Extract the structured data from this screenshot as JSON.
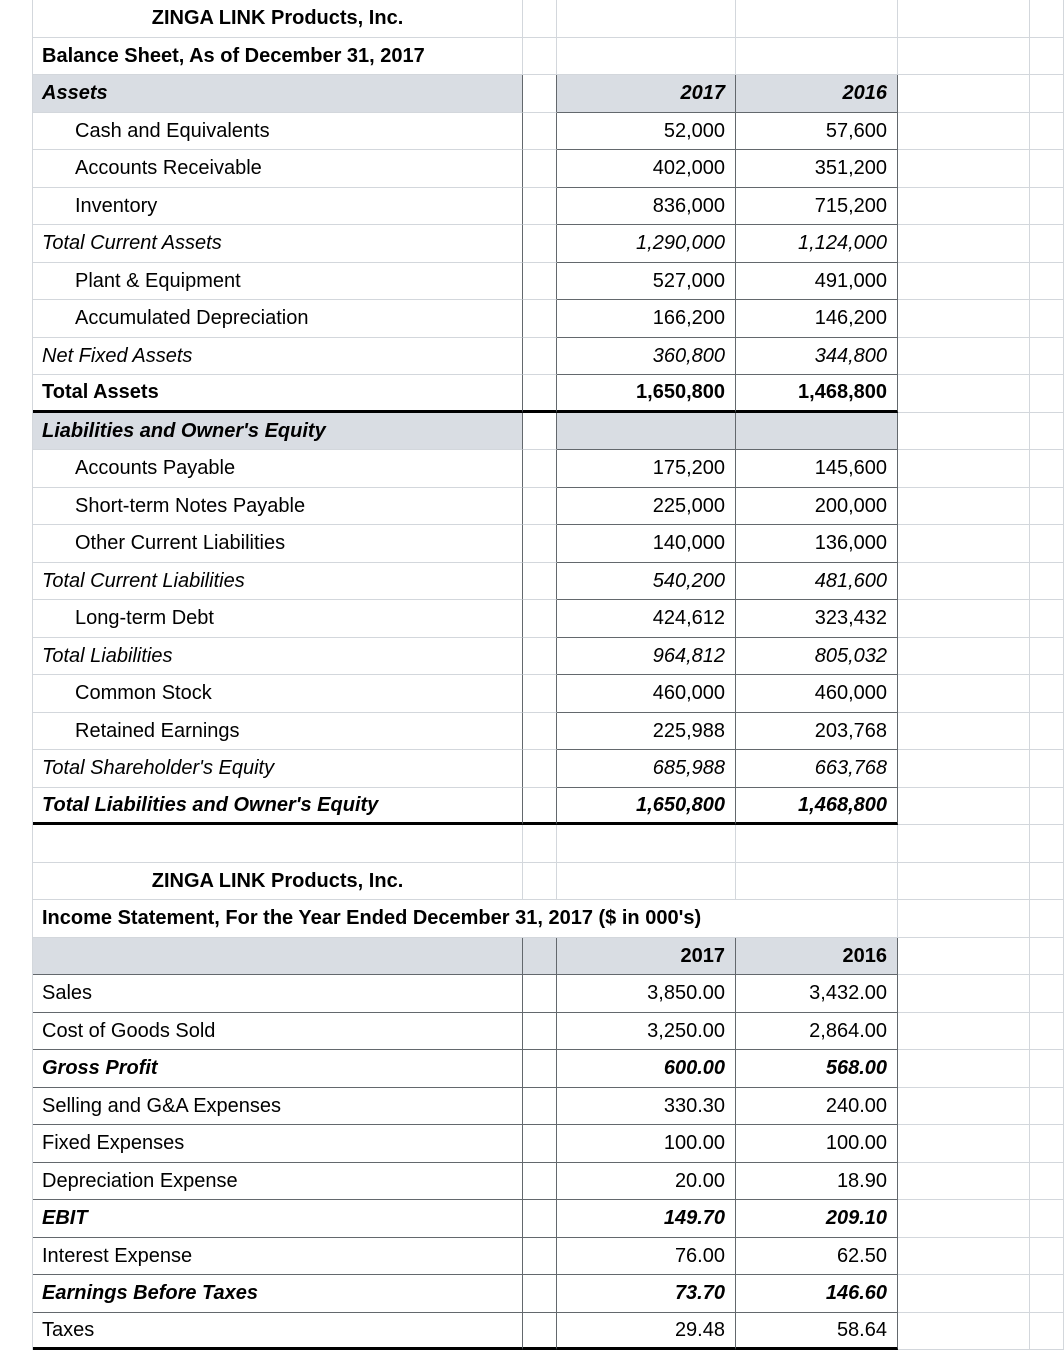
{
  "colors": {
    "header_bg": "#d9dde3",
    "gridline": "#d3d7dc",
    "table_border": "#63686d",
    "heavy_border": "#000000",
    "text": "#000000"
  },
  "balance_sheet_title": "ZINGA LINK Products, Inc.",
  "balance_sheet_subtitle": "Balance Sheet, As of December 31, 2017",
  "income_statement_title": "ZINGA LINK Products, Inc.",
  "income_statement_subtitle": "Income Statement, For the Year Ended December 31, 2017 ($ in 000's)",
  "rows": [
    {
      "type": "title",
      "label": "ZINGA LINK Products, Inc."
    },
    {
      "type": "subtitle",
      "label": "Balance Sheet, As of December 31, 2017"
    },
    {
      "type": "bs-header",
      "label": "Assets",
      "v2017": "2017",
      "v2016": "2016"
    },
    {
      "type": "detail",
      "label": "Cash and Equivalents",
      "v2017": "52,000",
      "v2016": "57,600"
    },
    {
      "type": "detail",
      "label": "Accounts Receivable",
      "v2017": "402,000",
      "v2016": "351,200"
    },
    {
      "type": "detail",
      "label": "Inventory",
      "v2017": "836,000",
      "v2016": "715,200"
    },
    {
      "type": "subtotal",
      "label": "Total Current Assets",
      "v2017": "1,290,000",
      "v2016": "1,124,000"
    },
    {
      "type": "detail",
      "label": "Plant & Equipment",
      "v2017": "527,000",
      "v2016": "491,000"
    },
    {
      "type": "detail",
      "label": "Accumulated Depreciation",
      "v2017": "166,200",
      "v2016": "146,200"
    },
    {
      "type": "subtotal",
      "label": "Net Fixed Assets",
      "v2017": "360,800",
      "v2016": "344,800"
    },
    {
      "type": "total",
      "label": "Total Assets",
      "v2017": "1,650,800",
      "v2016": "1,468,800"
    },
    {
      "type": "section",
      "label": "Liabilities and Owner's Equity"
    },
    {
      "type": "detail",
      "label": "Accounts Payable",
      "v2017": "175,200",
      "v2016": "145,600"
    },
    {
      "type": "detail",
      "label": "Short-term Notes Payable",
      "v2017": "225,000",
      "v2016": "200,000"
    },
    {
      "type": "detail",
      "label": "Other Current Liabilities",
      "v2017": "140,000",
      "v2016": "136,000"
    },
    {
      "type": "subtotal",
      "label": "Total Current Liabilities",
      "v2017": "540,200",
      "v2016": "481,600"
    },
    {
      "type": "detail",
      "label": "Long-term Debt",
      "v2017": "424,612",
      "v2016": "323,432"
    },
    {
      "type": "subtotal",
      "label": "Total Liabilities",
      "v2017": "964,812",
      "v2016": "805,032"
    },
    {
      "type": "detail",
      "label": "Common Stock",
      "v2017": "460,000",
      "v2016": "460,000"
    },
    {
      "type": "detail",
      "label": "Retained Earnings",
      "v2017": "225,988",
      "v2016": "203,768"
    },
    {
      "type": "subtotal",
      "label": "Total Shareholder's Equity",
      "v2017": "685,988",
      "v2016": "663,768"
    },
    {
      "type": "grandtotal",
      "label": "Total Liabilities and Owner's Equity",
      "v2017": "1,650,800",
      "v2016": "1,468,800"
    },
    {
      "type": "blank",
      "label": ""
    },
    {
      "type": "title",
      "label": "ZINGA LINK Products, Inc."
    },
    {
      "type": "subtitle",
      "overflow": true,
      "label": "Income Statement, For the Year Ended December 31, 2017 ($ in 000's)"
    },
    {
      "type": "is-header",
      "label": "",
      "v2017": "2017",
      "v2016": "2016"
    },
    {
      "type": "flat",
      "label": "Sales",
      "v2017": "3,850.00",
      "v2016": "3,432.00"
    },
    {
      "type": "flat",
      "label": "Cost of Goods Sold",
      "v2017": "3,250.00",
      "v2016": "2,864.00"
    },
    {
      "type": "is-bold",
      "label": "Gross Profit",
      "v2017": "600.00",
      "v2016": "568.00"
    },
    {
      "type": "flat",
      "label": "Selling and G&A Expenses",
      "v2017": "330.30",
      "v2016": "240.00"
    },
    {
      "type": "flat",
      "label": "Fixed Expenses",
      "v2017": "100.00",
      "v2016": "100.00"
    },
    {
      "type": "flat",
      "label": "Depreciation Expense",
      "v2017": "20.00",
      "v2016": "18.90"
    },
    {
      "type": "is-bold",
      "label": "EBIT",
      "v2017": "149.70",
      "v2016": "209.10"
    },
    {
      "type": "flat",
      "label": "Interest Expense",
      "v2017": "76.00",
      "v2016": "62.50"
    },
    {
      "type": "is-bold",
      "label": "Earnings Before Taxes",
      "v2017": "73.70",
      "v2016": "146.60"
    },
    {
      "type": "flat",
      "label": "Taxes",
      "v2017": "29.48",
      "v2016": "58.64"
    }
  ]
}
